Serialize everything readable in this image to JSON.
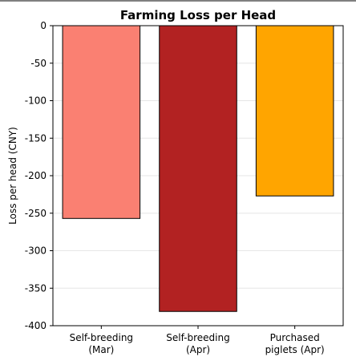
{
  "chart_data": {
    "type": "bar",
    "title": "Farming Loss per Head",
    "xlabel": "",
    "ylabel": "Loss per head (CNY)",
    "categories": [
      [
        "Self-breeding",
        "(Mar)"
      ],
      [
        "Self-breeding",
        "(Apr)"
      ],
      [
        "Purchased",
        "piglets (Apr)"
      ]
    ],
    "values": [
      -257,
      -381,
      -227
    ],
    "colors": [
      "#fa8072",
      "#b22222",
      "#ffa500"
    ],
    "ylim": [
      -400,
      0
    ],
    "yticks": [
      0,
      -50,
      -100,
      -150,
      -200,
      -250,
      -300,
      -350,
      -400
    ],
    "grid": "horizontal",
    "legend": "none"
  }
}
